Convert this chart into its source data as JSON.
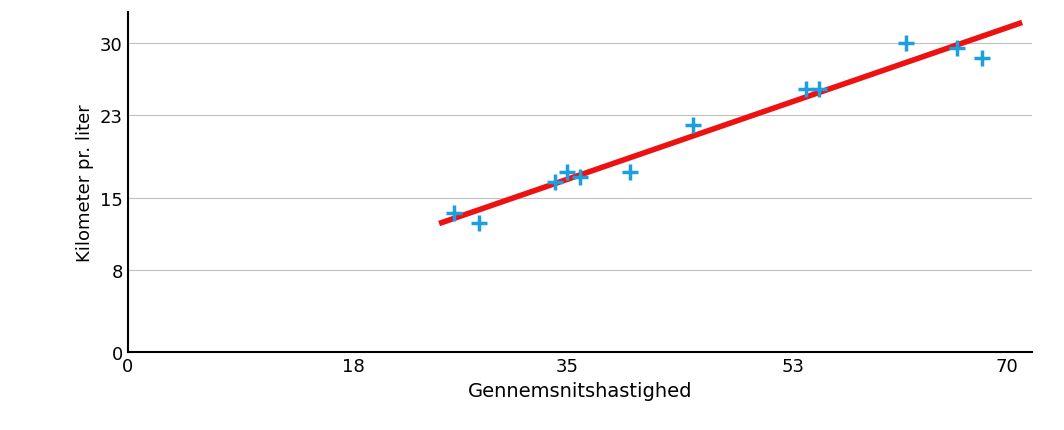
{
  "x_data": [
    26,
    28,
    34,
    35,
    36,
    40,
    45,
    54,
    55,
    62,
    66,
    68
  ],
  "y_data": [
    13.5,
    12.5,
    16.5,
    17.5,
    17.0,
    17.5,
    22.0,
    25.5,
    25.5,
    30.0,
    29.5,
    28.5
  ],
  "marker_color": "#1B9FE0",
  "marker_size": 130,
  "marker_linewidth": 2.5,
  "line_color": "#EE1111",
  "line_width": 4,
  "xlabel": "Gennemsnitshastighed",
  "ylabel": "Kilometer pr. liter",
  "xlim": [
    0,
    72
  ],
  "ylim": [
    0,
    33
  ],
  "xticks": [
    0,
    18,
    35,
    53,
    70
  ],
  "yticks": [
    0,
    8,
    15,
    23,
    30
  ],
  "background_color": "#FFFFFF",
  "grid_color": "#C0C0C0",
  "xlabel_fontsize": 14,
  "ylabel_fontsize": 13,
  "tick_fontsize": 13
}
